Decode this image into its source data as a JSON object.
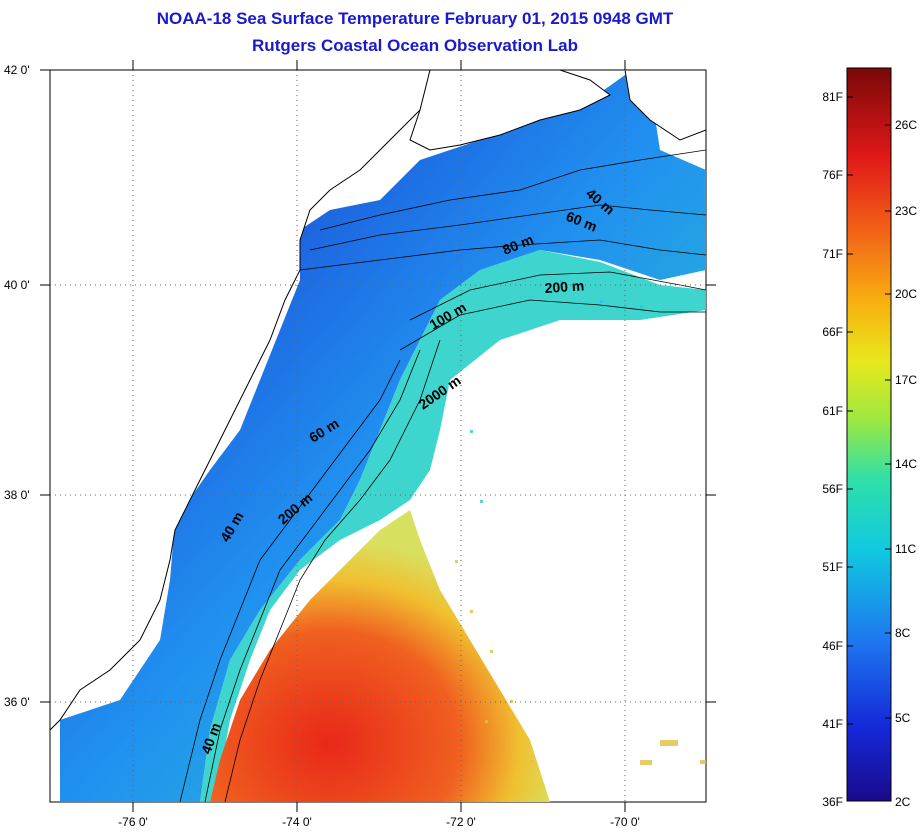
{
  "header": {
    "title": "NOAA-18 Sea Surface Temperature February 01, 2015 0948 GMT",
    "subtitle": "Rutgers Coastal Ocean Observation Lab"
  },
  "map": {
    "lat_labels": [
      "42 0'",
      "40 0'",
      "38 0'",
      "36 0'"
    ],
    "lon_labels": [
      "-76 0'",
      "-74 0'",
      "-72 0'",
      "-70 0'"
    ],
    "depth_labels": [
      "40 m",
      "60 m",
      "80 m",
      "200 m",
      "100 m",
      "2000 m",
      "60 m",
      "200 m",
      "40 m",
      "40 m"
    ]
  },
  "colorbar": {
    "f_labels": [
      "81F",
      "76F",
      "71F",
      "66F",
      "61F",
      "56F",
      "51F",
      "46F",
      "41F",
      "36F"
    ],
    "c_labels": [
      "26C",
      "23C",
      "20C",
      "17C",
      "14C",
      "11C",
      "8C",
      "5C",
      "2C"
    ]
  },
  "colors": {
    "title": "#1a1acc",
    "cold": "#1a0a9c",
    "warm": "#e8321a"
  }
}
